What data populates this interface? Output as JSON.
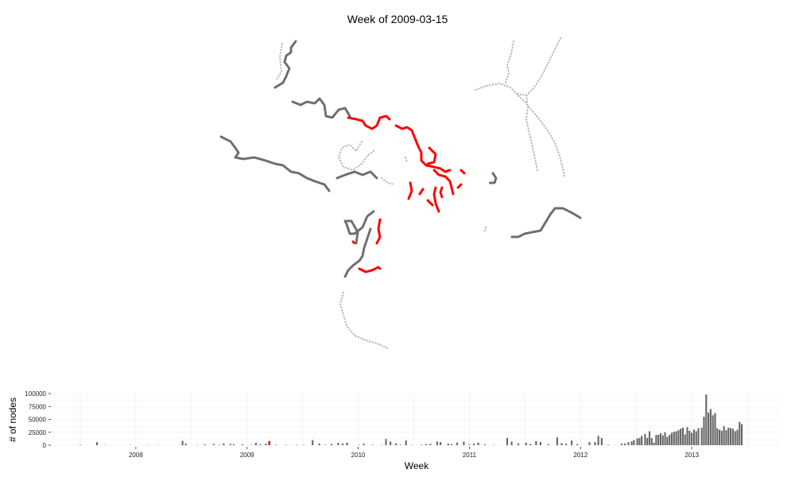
{
  "title": "Week of 2009-03-15",
  "colors": {
    "current": "#ff0000",
    "previous": "#6e6e6e",
    "faded": "#b4b4b4",
    "bar": "#666666",
    "grid": "#ebebeb"
  },
  "chart_data": [
    {
      "type": "scatter",
      "description_role": "map",
      "series": [
        {
          "style": "faded"
        },
        {
          "style": "previous"
        },
        {
          "style": "current"
        }
      ]
    },
    {
      "type": "bar",
      "xlabel": "Week",
      "ylabel": "# of nodes",
      "x_ticks": [
        "2008",
        "2009",
        "2010",
        "2011",
        "2012",
        "2013"
      ],
      "x_tick_values": [
        2008,
        2009,
        2010,
        2011,
        2012,
        2013
      ],
      "y_ticks": [
        "0",
        "25000",
        "50000",
        "75000",
        "100000"
      ],
      "y_tick_values": [
        0,
        25000,
        50000,
        75000,
        100000
      ],
      "xlim": [
        2007.25,
        2013.8
      ],
      "ylim": [
        0,
        100000
      ],
      "highlight_week": "2009-03-15",
      "highlight_x": 2009.2,
      "highlight_value": 8000,
      "bars": [
        [
          2007.5,
          900
        ],
        [
          2007.65,
          6000
        ],
        [
          2007.72,
          500
        ],
        [
          2007.95,
          300
        ],
        [
          2008.11,
          400
        ],
        [
          2008.2,
          300
        ],
        [
          2008.4,
          300
        ],
        [
          2008.42,
          8500
        ],
        [
          2008.45,
          3000
        ],
        [
          2008.55,
          600
        ],
        [
          2008.62,
          1500
        ],
        [
          2008.7,
          2500
        ],
        [
          2008.75,
          800
        ],
        [
          2008.79,
          3500
        ],
        [
          2008.85,
          2500
        ],
        [
          2008.88,
          2000
        ],
        [
          2008.96,
          1800
        ],
        [
          2009.04,
          700
        ],
        [
          2009.08,
          4500
        ],
        [
          2009.12,
          1500
        ],
        [
          2009.17,
          2800
        ],
        [
          2009.2,
          8000
        ],
        [
          2009.26,
          900
        ],
        [
          2009.35,
          800
        ],
        [
          2009.45,
          800
        ],
        [
          2009.51,
          500
        ],
        [
          2009.59,
          10000
        ],
        [
          2009.65,
          3500
        ],
        [
          2009.7,
          900
        ],
        [
          2009.76,
          2500
        ],
        [
          2009.82,
          4500
        ],
        [
          2009.86,
          3500
        ],
        [
          2009.9,
          5000
        ],
        [
          2010.01,
          600
        ],
        [
          2010.05,
          3000
        ],
        [
          2010.13,
          900
        ],
        [
          2010.21,
          600
        ],
        [
          2010.25,
          12000
        ],
        [
          2010.29,
          7000
        ],
        [
          2010.34,
          3500
        ],
        [
          2010.38,
          1000
        ],
        [
          2010.43,
          9000
        ],
        [
          2010.48,
          600
        ],
        [
          2010.57,
          800
        ],
        [
          2010.61,
          2000
        ],
        [
          2010.65,
          2500
        ],
        [
          2010.71,
          7000
        ],
        [
          2010.74,
          6000
        ],
        [
          2010.81,
          3000
        ],
        [
          2010.84,
          2000
        ],
        [
          2010.89,
          5000
        ],
        [
          2010.95,
          7000
        ],
        [
          2011.0,
          1200
        ],
        [
          2011.04,
          3000
        ],
        [
          2011.08,
          5000
        ],
        [
          2011.14,
          1500
        ],
        [
          2011.22,
          500
        ],
        [
          2011.34,
          14000
        ],
        [
          2011.38,
          7000
        ],
        [
          2011.44,
          3500
        ],
        [
          2011.51,
          5000
        ],
        [
          2011.55,
          2500
        ],
        [
          2011.6,
          8000
        ],
        [
          2011.64,
          6000
        ],
        [
          2011.71,
          2000
        ],
        [
          2011.79,
          15000
        ],
        [
          2011.83,
          4000
        ],
        [
          2011.87,
          3000
        ],
        [
          2011.92,
          9000
        ],
        [
          2011.97,
          2000
        ],
        [
          2012.08,
          6000
        ],
        [
          2012.13,
          6000
        ],
        [
          2012.16,
          18000
        ],
        [
          2012.19,
          14000
        ],
        [
          2012.25,
          1000
        ],
        [
          2012.37,
          3000
        ],
        [
          2012.4,
          3500
        ],
        [
          2012.43,
          6000
        ],
        [
          2012.46,
          7500
        ],
        [
          2012.48,
          10000
        ],
        [
          2012.51,
          13000
        ],
        [
          2012.53,
          14000
        ],
        [
          2012.55,
          18000
        ],
        [
          2012.58,
          22000
        ],
        [
          2012.6,
          14000
        ],
        [
          2012.62,
          27000
        ],
        [
          2012.64,
          14000
        ],
        [
          2012.66,
          5000
        ],
        [
          2012.68,
          20000
        ],
        [
          2012.7,
          20000
        ],
        [
          2012.72,
          23000
        ],
        [
          2012.74,
          19000
        ],
        [
          2012.76,
          25000
        ],
        [
          2012.78,
          16000
        ],
        [
          2012.8,
          20000
        ],
        [
          2012.82,
          24000
        ],
        [
          2012.84,
          26000
        ],
        [
          2012.86,
          27000
        ],
        [
          2012.88,
          29000
        ],
        [
          2012.9,
          32000
        ],
        [
          2012.92,
          34000
        ],
        [
          2012.94,
          21000
        ],
        [
          2012.96,
          35000
        ],
        [
          2012.98,
          28000
        ],
        [
          2013.0,
          24000
        ],
        [
          2013.02,
          30000
        ],
        [
          2013.04,
          27000
        ],
        [
          2013.06,
          33000
        ],
        [
          2013.09,
          34000
        ],
        [
          2013.11,
          55000
        ],
        [
          2013.13,
          98000
        ],
        [
          2013.15,
          63000
        ],
        [
          2013.17,
          70000
        ],
        [
          2013.19,
          58000
        ],
        [
          2013.21,
          62000
        ],
        [
          2013.23,
          33000
        ],
        [
          2013.25,
          30000
        ],
        [
          2013.27,
          28000
        ],
        [
          2013.29,
          37000
        ],
        [
          2013.31,
          29000
        ],
        [
          2013.33,
          34000
        ],
        [
          2013.35,
          33000
        ],
        [
          2013.37,
          32000
        ],
        [
          2013.39,
          27000
        ],
        [
          2013.41,
          30000
        ],
        [
          2013.43,
          45000
        ],
        [
          2013.45,
          41000
        ]
      ]
    }
  ]
}
